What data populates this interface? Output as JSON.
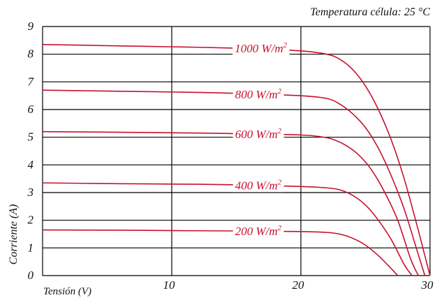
{
  "chart_data": {
    "type": "line",
    "title": "Temperatura célula: 25 °C",
    "xlabel": "Tensión (V)",
    "ylabel": "Corriente (A)",
    "xlim": [
      0,
      30
    ],
    "ylim": [
      0,
      9
    ],
    "x_ticks": [
      10,
      20,
      30
    ],
    "y_ticks": [
      0,
      1,
      2,
      3,
      4,
      5,
      6,
      7,
      8,
      9
    ],
    "grid": true,
    "legend": "inline labels on curves",
    "colors": {
      "series": "#c8102e",
      "grid": "#000000"
    },
    "series": [
      {
        "name": "1000 W/m²",
        "label_main": "1000 W/m",
        "label_sup": "2",
        "points": [
          [
            0,
            8.35
          ],
          [
            6,
            8.3
          ],
          [
            12,
            8.25
          ],
          [
            16,
            8.2
          ],
          [
            20,
            8.12
          ],
          [
            22,
            8.0
          ],
          [
            23,
            7.82
          ],
          [
            24,
            7.45
          ],
          [
            25,
            6.85
          ],
          [
            26,
            6.0
          ],
          [
            27,
            4.9
          ],
          [
            28,
            3.5
          ],
          [
            29,
            1.8
          ],
          [
            29.5,
            0.9
          ],
          [
            30.0,
            0.0
          ]
        ]
      },
      {
        "name": "800 W/m²",
        "label_main": "800 W/m",
        "label_sup": "2",
        "points": [
          [
            0,
            6.7
          ],
          [
            6,
            6.66
          ],
          [
            12,
            6.62
          ],
          [
            16,
            6.57
          ],
          [
            20,
            6.5
          ],
          [
            22,
            6.4
          ],
          [
            23,
            6.2
          ],
          [
            24,
            5.85
          ],
          [
            25,
            5.35
          ],
          [
            26,
            4.6
          ],
          [
            27,
            3.6
          ],
          [
            28,
            2.4
          ],
          [
            29,
            0.9
          ],
          [
            29.6,
            0.0
          ]
        ]
      },
      {
        "name": "600 W/m²",
        "label_main": "600 W/m",
        "label_sup": "2",
        "points": [
          [
            0,
            5.2
          ],
          [
            6,
            5.18
          ],
          [
            12,
            5.15
          ],
          [
            16,
            5.12
          ],
          [
            20,
            5.08
          ],
          [
            21.5,
            5.02
          ],
          [
            22.5,
            4.92
          ],
          [
            23.5,
            4.7
          ],
          [
            24.5,
            4.35
          ],
          [
            25.5,
            3.8
          ],
          [
            26.5,
            3.0
          ],
          [
            27.5,
            2.0
          ],
          [
            28.5,
            0.6
          ],
          [
            29.1,
            0.0
          ]
        ]
      },
      {
        "name": "400 W/m²",
        "label_main": "400 W/m",
        "label_sup": "2",
        "points": [
          [
            0,
            3.35
          ],
          [
            6,
            3.32
          ],
          [
            12,
            3.3
          ],
          [
            16,
            3.27
          ],
          [
            20,
            3.22
          ],
          [
            22,
            3.17
          ],
          [
            23,
            3.1
          ],
          [
            24,
            2.9
          ],
          [
            25,
            2.55
          ],
          [
            26,
            2.0
          ],
          [
            27,
            1.3
          ],
          [
            28,
            0.4
          ],
          [
            28.6,
            0.0
          ]
        ]
      },
      {
        "name": "200 W/m²",
        "label_main": "200 W/m",
        "label_sup": "2",
        "points": [
          [
            0,
            1.65
          ],
          [
            6,
            1.64
          ],
          [
            12,
            1.62
          ],
          [
            16,
            1.61
          ],
          [
            20,
            1.59
          ],
          [
            22,
            1.56
          ],
          [
            23,
            1.5
          ],
          [
            24,
            1.35
          ],
          [
            25,
            1.1
          ],
          [
            26,
            0.72
          ],
          [
            27,
            0.25
          ],
          [
            27.5,
            0.0
          ]
        ]
      }
    ],
    "label_positions": [
      {
        "series": 0,
        "x": 16.9,
        "y": 8.22
      },
      {
        "series": 1,
        "x": 16.7,
        "y": 6.55
      },
      {
        "series": 2,
        "x": 16.7,
        "y": 5.12
      },
      {
        "series": 3,
        "x": 16.7,
        "y": 3.27
      },
      {
        "series": 4,
        "x": 16.7,
        "y": 1.61
      }
    ]
  }
}
